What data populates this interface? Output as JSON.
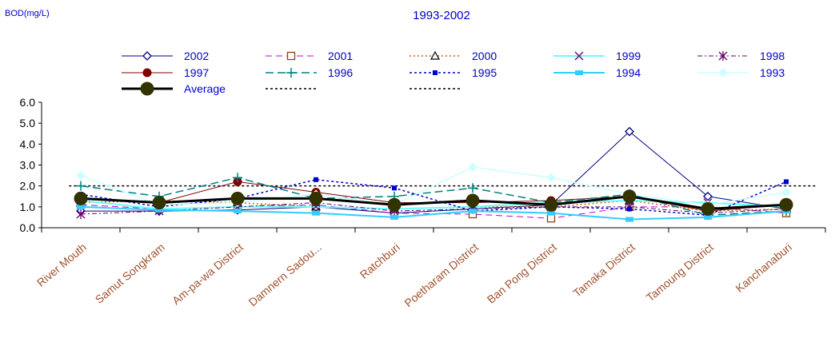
{
  "chart_data": {
    "type": "line",
    "title": "1993-2002",
    "ylabel": "BOD(mg/L)",
    "xlabel": "",
    "ylim": [
      0,
      6
    ],
    "yticks": [
      "0.0",
      "1.0",
      "2.0",
      "3.0",
      "4.0",
      "5.0",
      "6.0"
    ],
    "grid": false,
    "legend_position": "top",
    "categories": [
      "River Mouth",
      "Samut Songkram",
      "Am-pa-wa District",
      "Damnern Sadou...",
      "Ratchburi",
      "Poetharam District",
      "Ban Pong District",
      "Tamaka District",
      "Tamoung District",
      "Kanchanaburi"
    ],
    "series": [
      {
        "name": "2002",
        "color": "#000080",
        "dash": "",
        "width": 1,
        "marker": "diamond-open",
        "values": [
          0.8,
          0.8,
          0.85,
          1.0,
          0.7,
          0.9,
          1.1,
          4.6,
          1.5,
          0.9
        ]
      },
      {
        "name": "2001",
        "color": "#cc00cc",
        "dash": "8,5",
        "width": 1,
        "marker": "square-open-brown",
        "values": [
          1.1,
          0.9,
          1.0,
          1.1,
          0.7,
          0.65,
          0.45,
          1.0,
          1.0,
          0.7
        ]
      },
      {
        "name": "2000",
        "color": "#cc6600",
        "dash": "2,3",
        "width": 1.5,
        "marker": "triangle-open",
        "values": [
          1.2,
          1.3,
          1.2,
          1.0,
          0.9,
          1.0,
          1.0,
          1.3,
          0.8,
          0.9
        ]
      },
      {
        "name": "1999",
        "color": "#66ffff",
        "dash": "",
        "width": 2,
        "marker": "x",
        "values": [
          1.3,
          0.9,
          1.0,
          1.0,
          0.9,
          1.0,
          1.2,
          1.3,
          1.2,
          1.0
        ]
      },
      {
        "name": "1998",
        "color": "#660066",
        "dash": "6,3,2,3",
        "width": 1,
        "marker": "star",
        "values": [
          0.65,
          0.8,
          1.0,
          1.2,
          0.8,
          0.9,
          1.0,
          1.0,
          0.7,
          0.9
        ]
      },
      {
        "name": "1997",
        "color": "#800000",
        "dash": "",
        "width": 1,
        "marker": "circle",
        "values": [
          1.4,
          1.2,
          2.2,
          1.7,
          1.2,
          1.2,
          1.3,
          1.5,
          0.8,
          1.1
        ]
      },
      {
        "name": "1996",
        "color": "#008080",
        "dash": "10,5",
        "width": 1.5,
        "marker": "plus",
        "values": [
          2.0,
          1.5,
          2.4,
          1.4,
          1.5,
          1.9,
          1.2,
          1.6,
          0.6,
          0.8
        ]
      },
      {
        "name": "1995",
        "color": "#0000cc",
        "dash": "3,3",
        "width": 1.5,
        "marker": "square-small",
        "values": [
          1.6,
          1.0,
          1.4,
          2.3,
          1.9,
          0.8,
          1.0,
          0.9,
          0.6,
          2.2
        ]
      },
      {
        "name": "1994",
        "color": "#33ccff",
        "dash": "",
        "width": 2,
        "marker": "square-wide",
        "values": [
          1.0,
          0.85,
          0.8,
          0.7,
          0.5,
          0.8,
          0.7,
          0.4,
          0.5,
          0.8
        ]
      },
      {
        "name": "1993",
        "color": "#ccffff",
        "dash": "",
        "width": 1.5,
        "marker": "diamond-filled",
        "values": [
          2.5,
          1.1,
          1.2,
          1.6,
          1.1,
          2.9,
          2.4,
          1.6,
          1.1,
          1.7
        ]
      },
      {
        "name": "Average",
        "color": "#000000",
        "dash": "",
        "width": 3,
        "marker": "circle-big",
        "values": [
          1.4,
          1.2,
          1.4,
          1.4,
          1.1,
          1.3,
          1.1,
          1.5,
          0.9,
          1.1
        ]
      }
    ],
    "reference_lines": [
      {
        "name": "",
        "color": "#000000",
        "dash": "3,3",
        "value": 2.0
      }
    ]
  }
}
